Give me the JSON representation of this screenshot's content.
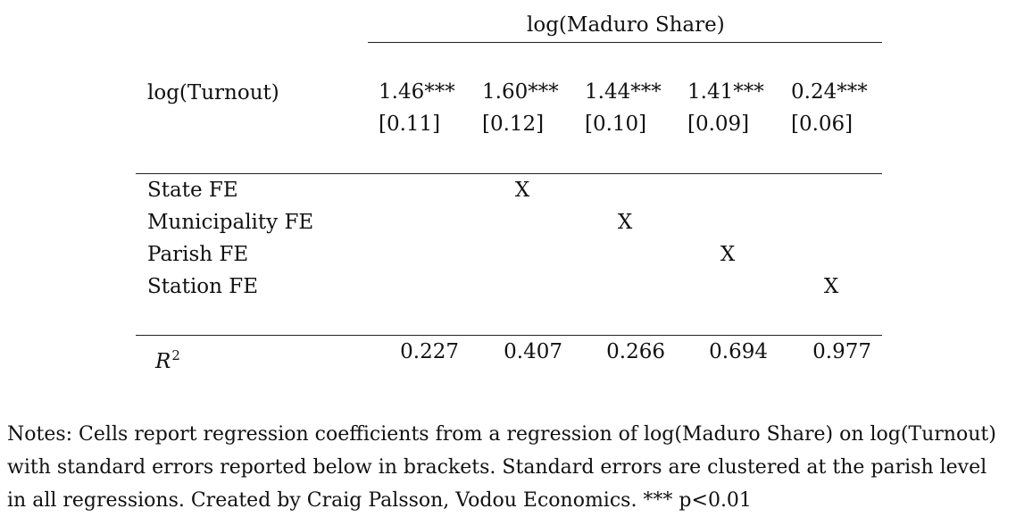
{
  "table": {
    "dep_var_header": "log(Maduro Share)",
    "regressor_label": "log(Turnout)",
    "coefficients": [
      "1.46***",
      "1.60***",
      "1.44***",
      "1.41***",
      "0.24***"
    ],
    "std_errors": [
      "[0.11]",
      "[0.12]",
      "[0.10]",
      "[0.09]",
      "[0.06]"
    ],
    "fixed_effects": [
      {
        "label": "State FE",
        "marks": [
          "",
          "X",
          "",
          "",
          ""
        ]
      },
      {
        "label": "Municipality FE",
        "marks": [
          "",
          "",
          "X",
          "",
          ""
        ]
      },
      {
        "label": "Parish FE",
        "marks": [
          "",
          "",
          "",
          "X",
          ""
        ]
      },
      {
        "label": "Station FE",
        "marks": [
          "",
          "",
          "",
          "",
          "X"
        ]
      }
    ],
    "r2_label": "R",
    "r2_sup": "2",
    "r2_values": [
      "0.227",
      "0.407",
      "0.266",
      "0.694",
      "0.977"
    ]
  },
  "notes": {
    "line1": "Notes: Cells report regression coefficients from a regression of log(Maduro Share) on log(Turnout)",
    "line2": "with standard errors reported below in brackets. Standard errors are clustered at the parish level",
    "line3": "in all regressions. Created by Craig Palsson, Vodou Economics. *** p<0.01"
  }
}
